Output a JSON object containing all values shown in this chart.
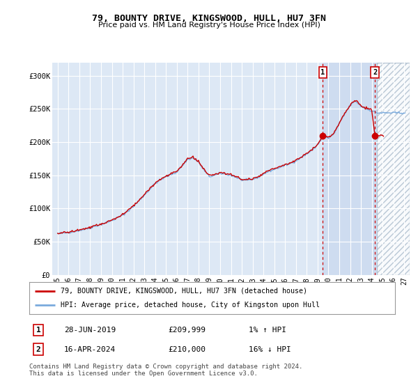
{
  "title": "79, BOUNTY DRIVE, KINGSWOOD, HULL, HU7 3FN",
  "subtitle": "Price paid vs. HM Land Registry's House Price Index (HPI)",
  "legend_line1": "79, BOUNTY DRIVE, KINGSWOOD, HULL, HU7 3FN (detached house)",
  "legend_line2": "HPI: Average price, detached house, City of Kingston upon Hull",
  "footnote": "Contains HM Land Registry data © Crown copyright and database right 2024.\nThis data is licensed under the Open Government Licence v3.0.",
  "transaction1": {
    "label": "1",
    "date": "28-JUN-2019",
    "price": "£209,999",
    "hpi": "1% ↑ HPI"
  },
  "transaction2": {
    "label": "2",
    "date": "16-APR-2024",
    "price": "£210,000",
    "hpi": "16% ↓ HPI"
  },
  "marker1_x": 2019.49,
  "marker2_x": 2024.29,
  "marker1_y": 209999,
  "marker2_y": 210000,
  "hpi_color": "#7aaadd",
  "price_color": "#cc0000",
  "vline_color": "#cc0000",
  "background_color": "#ffffff",
  "plot_bg_color": "#dde8f5",
  "grid_color": "#ffffff",
  "shade_color": "#c8d8ef",
  "hatch_color": "#aabbcc",
  "ylim": [
    0,
    320000
  ],
  "xlim": [
    1994.5,
    2027.5
  ],
  "yticks": [
    0,
    50000,
    100000,
    150000,
    200000,
    250000,
    300000
  ],
  "ytick_labels": [
    "£0",
    "£50K",
    "£100K",
    "£150K",
    "£200K",
    "£250K",
    "£300K"
  ],
  "xticks": [
    1995,
    1996,
    1997,
    1998,
    1999,
    2000,
    2001,
    2002,
    2003,
    2004,
    2005,
    2006,
    2007,
    2008,
    2009,
    2010,
    2011,
    2012,
    2013,
    2014,
    2015,
    2016,
    2017,
    2018,
    2019,
    2020,
    2021,
    2022,
    2023,
    2024,
    2025,
    2026,
    2027
  ],
  "xtick_labels": [
    "95",
    "96",
    "97",
    "98",
    "99",
    "00",
    "01",
    "02",
    "03",
    "04",
    "05",
    "06",
    "07",
    "08",
    "09",
    "10",
    "11",
    "12",
    "13",
    "14",
    "15",
    "16",
    "17",
    "18",
    "19",
    "20",
    "21",
    "22",
    "23",
    "24",
    "25",
    "26",
    "27"
  ],
  "hatch_region_start": 2024.5,
  "hatch_region_end": 2027.5,
  "shade_region_start": 2019.49,
  "shade_region_end": 2024.5
}
